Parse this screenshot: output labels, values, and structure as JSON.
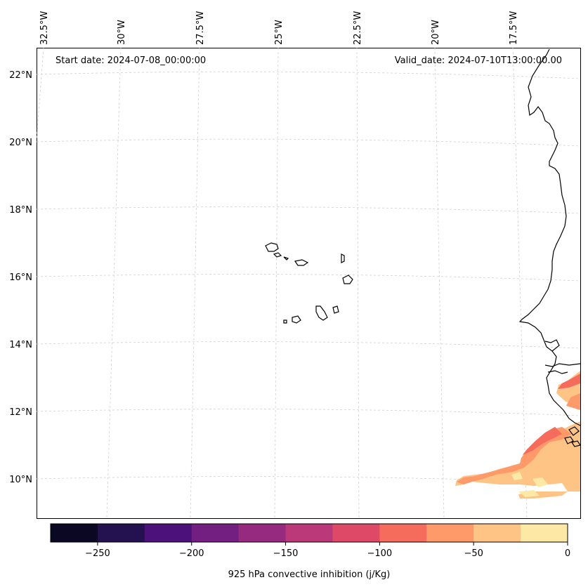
{
  "header": {
    "start_date": "Start date: 2024-07-08_00:00:00",
    "valid_date": "Valid_date: 2024-07-10T13:00:00.00"
  },
  "map": {
    "lon_labels": [
      "32.5°W",
      "30°W",
      "27.5°W",
      "25°W",
      "22.5°W",
      "20°W",
      "17.5°W"
    ],
    "lat_labels": [
      "22°N",
      "20°N",
      "18°N",
      "16°N",
      "14°N",
      "12°N",
      "10°N"
    ],
    "regions": [
      "Cape Verde islands",
      "West African coast (Mauritania, Senegal, Guinea-Bissau, Guinea)"
    ]
  },
  "colorbar": {
    "label": "925 hPa convective inhibition (j/Kg)",
    "min": -275,
    "max": 0,
    "step": 25,
    "tick_labels": [
      "−250",
      "−200",
      "−150",
      "−100",
      "−50",
      "0"
    ],
    "tick_values": [
      -250,
      -200,
      -150,
      -100,
      -50,
      0
    ],
    "colors": [
      "#0a0822",
      "#231150",
      "#4c117a",
      "#731f81",
      "#962a7f",
      "#bb3978",
      "#de4968",
      "#f56b5c",
      "#fe9a6a",
      "#fdc486",
      "#fde9a5"
    ]
  }
}
